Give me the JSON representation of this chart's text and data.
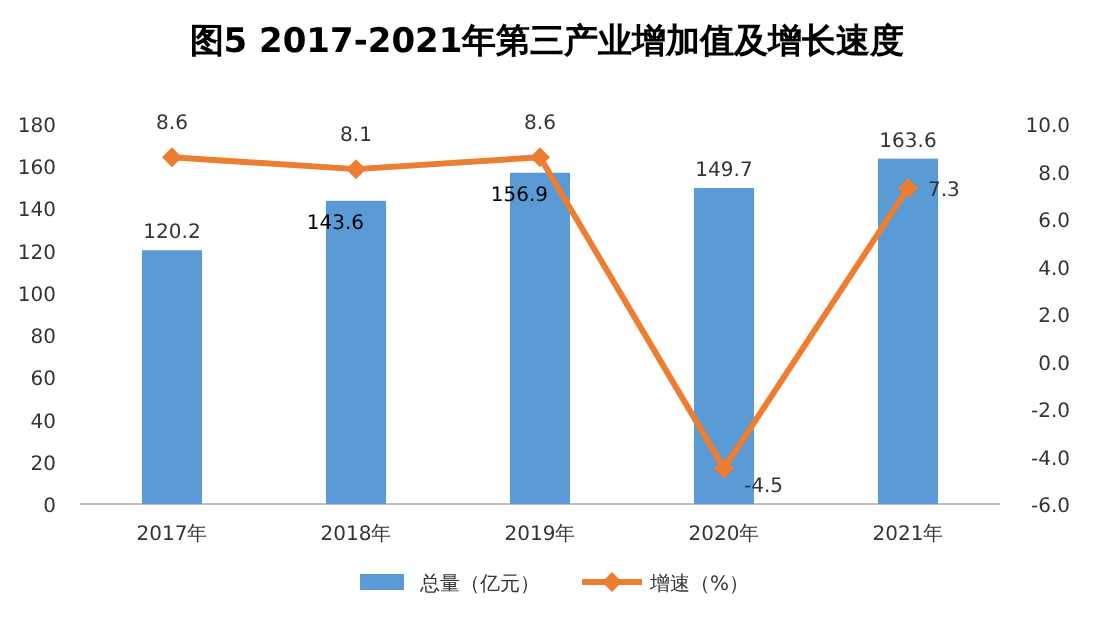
{
  "chart_data": {
    "type": "bar",
    "title": "图5  2017-2021年第三产业增加值及增长速度",
    "categories": [
      "2017年",
      "2018年",
      "2019年",
      "2020年",
      "2021年"
    ],
    "series": [
      {
        "name": "总量（亿元）",
        "color": "#5b9bd5",
        "values": [
          120.2,
          143.6,
          156.9,
          149.7,
          163.6
        ]
      },
      {
        "name": "增速（%）",
        "type": "line",
        "axis": "y2",
        "color": "#ed7d31",
        "marker": "diamond",
        "values": [
          8.6,
          8.1,
          8.6,
          -4.5,
          7.3
        ]
      }
    ],
    "ylim": [
      0,
      180
    ],
    "yticks": [
      0,
      20,
      40,
      60,
      80,
      100,
      120,
      140,
      160,
      180
    ],
    "y2lim": [
      -6,
      10
    ],
    "y2ticks": [
      {
        "value": -6,
        "label": "-6.0"
      },
      {
        "value": -4,
        "label": "-4.0"
      },
      {
        "value": -2,
        "label": "-2.0"
      },
      {
        "value": 0,
        "label": "0.0"
      },
      {
        "value": 2,
        "label": "2.0"
      },
      {
        "value": 4,
        "label": "4.0"
      },
      {
        "value": 6,
        "label": "6.0"
      },
      {
        "value": 8,
        "label": "8.0"
      },
      {
        "value": 10,
        "label": "10.0"
      }
    ],
    "data_labels": true,
    "legend": "bottom"
  }
}
